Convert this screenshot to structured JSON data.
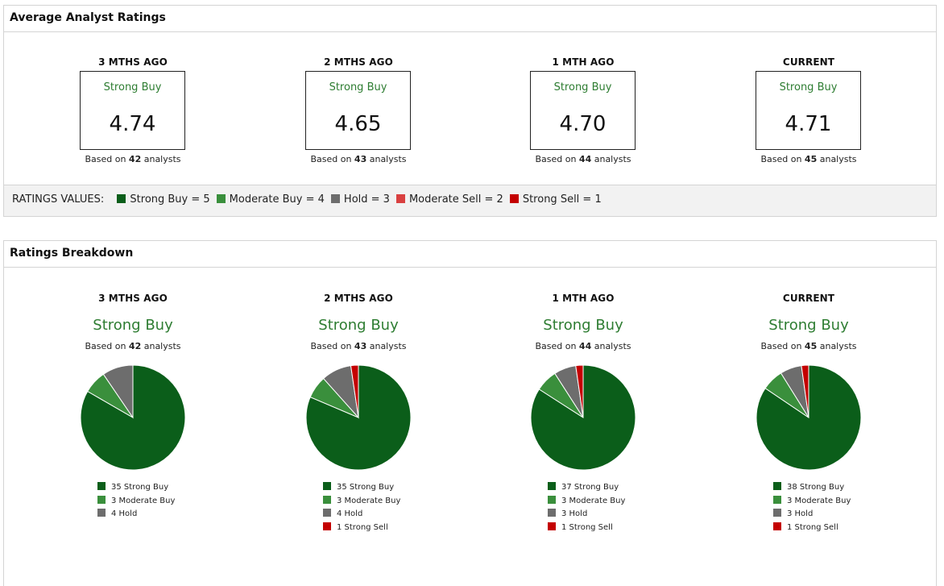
{
  "average_panel": {
    "title": "Average Analyst Ratings",
    "columns": [
      {
        "period": "3 MTHS AGO",
        "label": "Strong Buy",
        "score": "4.74",
        "analysts": "42"
      },
      {
        "period": "2 MTHS AGO",
        "label": "Strong Buy",
        "score": "4.65",
        "analysts": "43"
      },
      {
        "period": "1 MTH AGO",
        "label": "Strong Buy",
        "score": "4.70",
        "analysts": "44"
      },
      {
        "period": "CURRENT",
        "label": "Strong Buy",
        "score": "4.71",
        "analysts": "45"
      }
    ],
    "based_prefix": "Based on ",
    "based_suffix": " analysts",
    "ratings_values_title": "RATINGS VALUES:",
    "ratings_values": [
      {
        "label": "Strong Buy = 5",
        "color": "#0b5e1a"
      },
      {
        "label": "Moderate Buy = 4",
        "color": "#3a8f3c"
      },
      {
        "label": "Hold = 3",
        "color": "#6d6d6d"
      },
      {
        "label": "Moderate Sell = 2",
        "color": "#d94040"
      },
      {
        "label": "Strong Sell = 1",
        "color": "#c40000"
      }
    ]
  },
  "breakdown_panel": {
    "title": "Ratings Breakdown"
  },
  "colors": {
    "Strong Buy": "#0b5e1a",
    "Moderate Buy": "#3a8f3c",
    "Hold": "#6d6d6d",
    "Moderate Sell": "#d94040",
    "Strong Sell": "#c40000"
  },
  "chart_data": [
    {
      "type": "pie",
      "title": "3 MTHS AGO",
      "subtitle": "Strong Buy",
      "analysts": "42",
      "slices": [
        {
          "name": "Strong Buy",
          "value": 35
        },
        {
          "name": "Moderate Buy",
          "value": 3
        },
        {
          "name": "Hold",
          "value": 4
        }
      ]
    },
    {
      "type": "pie",
      "title": "2 MTHS AGO",
      "subtitle": "Strong Buy",
      "analysts": "43",
      "slices": [
        {
          "name": "Strong Buy",
          "value": 35
        },
        {
          "name": "Moderate Buy",
          "value": 3
        },
        {
          "name": "Hold",
          "value": 4
        },
        {
          "name": "Strong Sell",
          "value": 1
        }
      ]
    },
    {
      "type": "pie",
      "title": "1 MTH AGO",
      "subtitle": "Strong Buy",
      "analysts": "44",
      "slices": [
        {
          "name": "Strong Buy",
          "value": 37
        },
        {
          "name": "Moderate Buy",
          "value": 3
        },
        {
          "name": "Hold",
          "value": 3
        },
        {
          "name": "Strong Sell",
          "value": 1
        }
      ]
    },
    {
      "type": "pie",
      "title": "CURRENT",
      "subtitle": "Strong Buy",
      "analysts": "45",
      "slices": [
        {
          "name": "Strong Buy",
          "value": 38
        },
        {
          "name": "Moderate Buy",
          "value": 3
        },
        {
          "name": "Hold",
          "value": 3
        },
        {
          "name": "Strong Sell",
          "value": 1
        }
      ]
    }
  ]
}
